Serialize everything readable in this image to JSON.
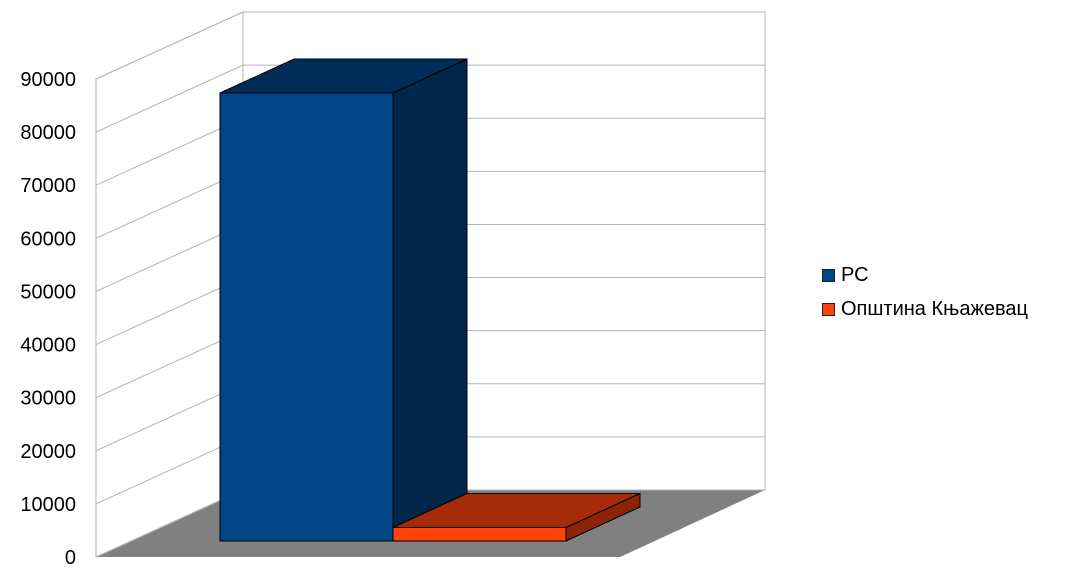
{
  "chart_data": {
    "type": "bar",
    "style": "3d",
    "title": "",
    "xlabel": "",
    "ylabel": "",
    "categories": [
      ""
    ],
    "series": [
      {
        "name": "РС",
        "values": [
          86000
        ],
        "color": "#004586"
      },
      {
        "name": "Општина Књажевац",
        "values": [
          2600
        ],
        "color": "#ff420e"
      }
    ],
    "ylim": [
      0,
      90000
    ],
    "yticks": [
      "0",
      "10000",
      "20000",
      "30000",
      "40000",
      "50000",
      "60000",
      "70000",
      "80000",
      "90000"
    ],
    "grid": true,
    "legend_position": "right",
    "floor_color": "#808080",
    "wall_color": "#ffffff"
  }
}
